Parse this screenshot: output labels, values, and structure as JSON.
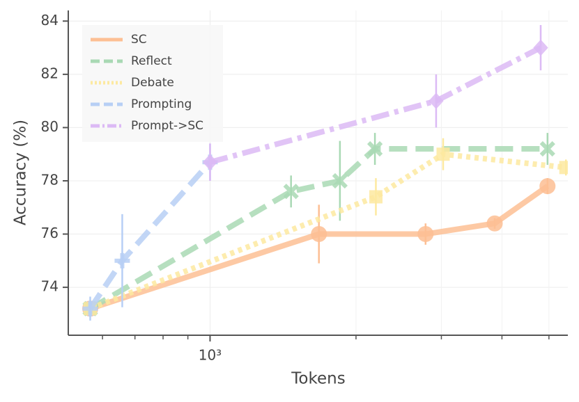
{
  "chart_data": {
    "type": "line",
    "x_label": "Tokens",
    "y_label": "Accuracy (%)",
    "xscale": "log",
    "xlim": [
      510,
      5470
    ],
    "ylim": [
      72.2,
      84.4
    ],
    "xticks": [
      {
        "value": 1000,
        "label": "10³"
      }
    ],
    "xminor_ticks": [
      600,
      700,
      800,
      900,
      2000,
      3000,
      4000,
      5000
    ],
    "yticks": [
      74,
      76,
      78,
      80,
      82,
      84
    ],
    "grid": true,
    "legend": "upper left",
    "series": [
      {
        "name": "SC",
        "color": "#fdbf94",
        "marker": "circle",
        "dash": "solid",
        "x": [
          566,
          1677,
          2783,
          3865,
          4966
        ],
        "values": [
          73.2,
          76,
          76,
          76.4,
          77.8
        ],
        "errors": [
          0.3,
          1.1,
          0.4,
          0.2,
          0.3
        ]
      },
      {
        "name": "Reflect",
        "color": "#a9d9b4",
        "marker": "x",
        "dash": "dashed",
        "x": [
          566,
          1469,
          1853,
          2188,
          4966
        ],
        "values": [
          73.2,
          77.6,
          78,
          79.2,
          79.2
        ],
        "errors": [
          0.3,
          0.6,
          1.5,
          0.6,
          0.6
        ]
      },
      {
        "name": "Debate",
        "color": "#fde9a0",
        "marker": "square",
        "dash": "dotted",
        "x": [
          566,
          2198,
          3025,
          5420
        ],
        "values": [
          73.2,
          77.4,
          79,
          78.5
        ],
        "errors": [
          0.3,
          0.7,
          0.6,
          0.3
        ]
      },
      {
        "name": "Prompting",
        "color": "#b7cff5",
        "marker": "plus",
        "dash": "dashed",
        "x": [
          566,
          659,
          1000
        ],
        "values": [
          73.2,
          75,
          78.7
        ],
        "errors": [
          0.45,
          1.75,
          0.7
        ]
      },
      {
        "name": "Prompt->SC",
        "color": "#dcbaf5",
        "marker": "diamond",
        "dash": "dashdot",
        "x": [
          1000,
          2926,
          4808
        ],
        "values": [
          78.7,
          81,
          83
        ],
        "errors": [
          0.7,
          1,
          0.85
        ]
      }
    ]
  }
}
